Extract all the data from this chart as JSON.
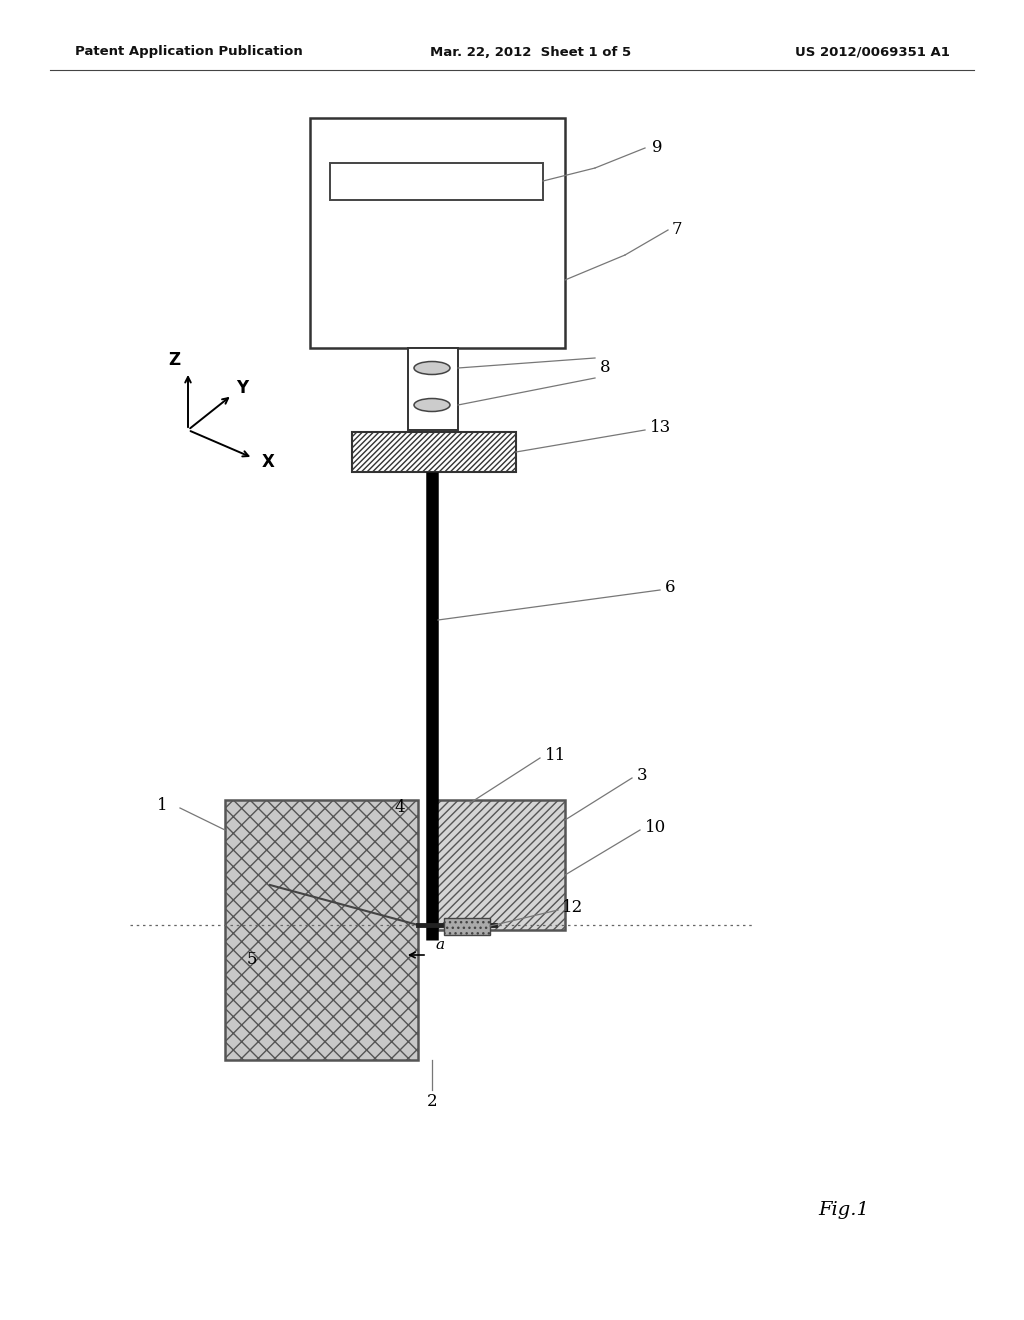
{
  "header_left": "Patent Application Publication",
  "header_mid": "Mar. 22, 2012  Sheet 1 of 5",
  "header_right": "US 2012/0069351 A1",
  "fig_label": "Fig.1",
  "background_color": "#ffffff",
  "beam_color": "#111111",
  "hatch_body": "xx",
  "hatch_flange": "////",
  "hatch_right_block": "////",
  "line_color": "#888888",
  "label_color": "#222222"
}
